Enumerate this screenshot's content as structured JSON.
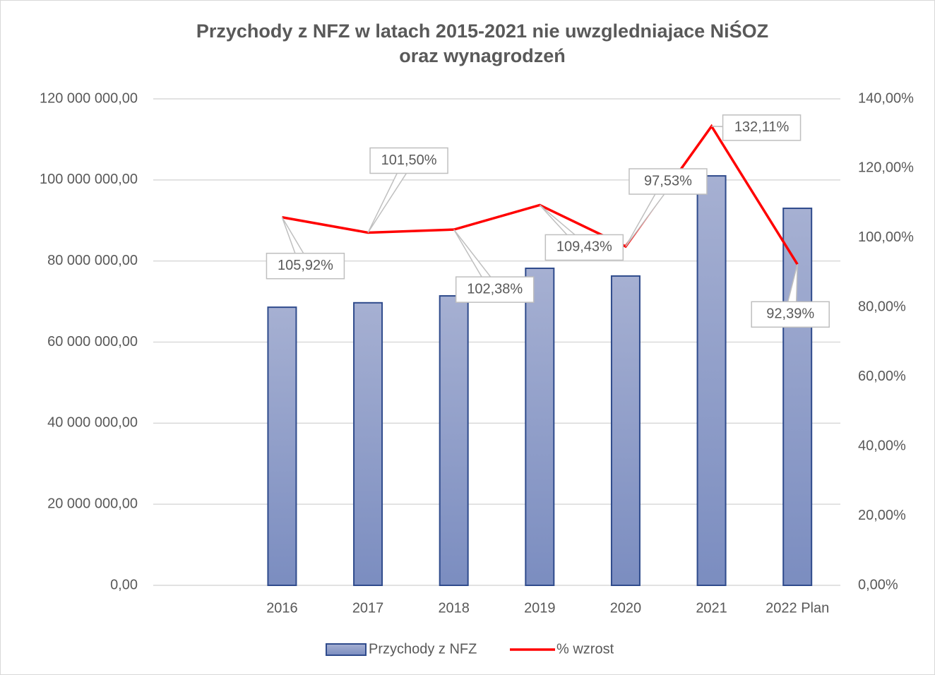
{
  "chart_data": {
    "type": "bar_line",
    "title": [
      "Przychody  z NFZ w latach 2015-2021 nie uwzgledniajace NiŚOZ",
      "oraz wynagrodzeń"
    ],
    "categories": [
      null,
      "2016",
      "2017",
      "2018",
      "2019",
      "2020",
      "2021",
      "2022 Plan"
    ],
    "series": [
      {
        "name": "Przychody z NFZ",
        "type": "bar",
        "color": "#95a3cc",
        "values": [
          null,
          68600000,
          69700000,
          71400000,
          78200000,
          76300000,
          101000000,
          93000000
        ]
      },
      {
        "name": "% wzrost",
        "type": "line",
        "axis": "y2",
        "color": "#ff0000",
        "values": [
          null,
          105.92,
          101.5,
          102.38,
          109.43,
          97.53,
          132.11,
          92.39
        ],
        "value_labels": [
          null,
          "105,92%",
          "101,50%",
          "102,38%",
          "109,43%",
          "97,53%",
          "132,11%",
          "92,39%"
        ]
      }
    ],
    "ylim": [
      0,
      120000000
    ],
    "yticks": [
      {
        "value": 0,
        "label": "0,00"
      },
      {
        "value": 20000000,
        "label": "20 000 000,00"
      },
      {
        "value": 40000000,
        "label": "40 000 000,00"
      },
      {
        "value": 60000000,
        "label": "60 000 000,00"
      },
      {
        "value": 80000000,
        "label": "80 000 000,00"
      },
      {
        "value": 100000000,
        "label": "100 000 000,00"
      },
      {
        "value": 120000000,
        "label": "120 000 000,00"
      }
    ],
    "y2lim": [
      0,
      140
    ],
    "y2ticks": [
      {
        "value": 0,
        "label": "0,00%"
      },
      {
        "value": 20,
        "label": "20,00%"
      },
      {
        "value": 40,
        "label": "40,00%"
      },
      {
        "value": 60,
        "label": "60,00%"
      },
      {
        "value": 80,
        "label": "80,00%"
      },
      {
        "value": 100,
        "label": "100,00%"
      },
      {
        "value": 120,
        "label": "120,00%"
      },
      {
        "value": 140,
        "label": "140,00%"
      }
    ],
    "grid": true,
    "legend": "bottom"
  }
}
